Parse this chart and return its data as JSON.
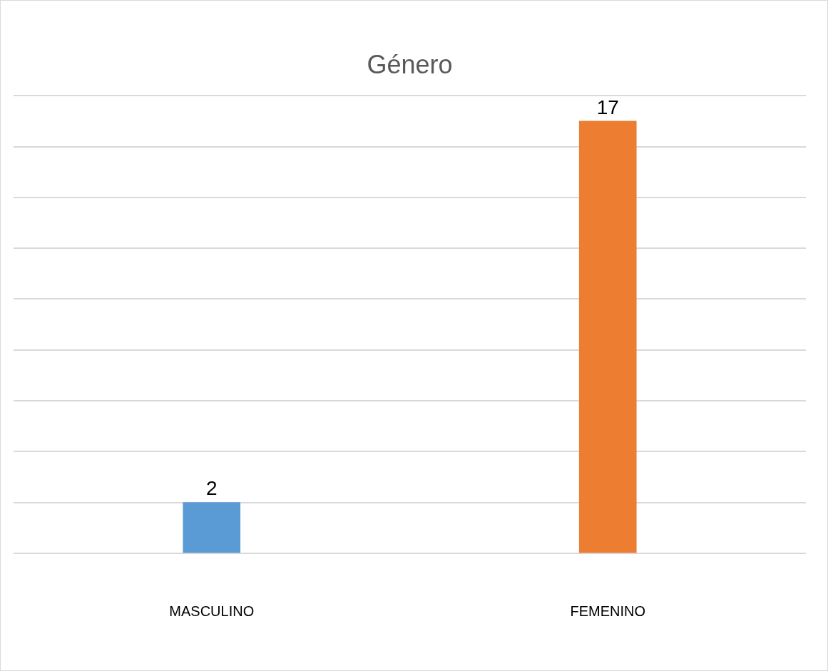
{
  "chart_data": {
    "type": "bar",
    "title": "Género",
    "categories": [
      "MASCULINO",
      "FEMENINO"
    ],
    "values": [
      2,
      17
    ],
    "colors": [
      "#5b9bd5",
      "#ed7d31"
    ],
    "tick_labels": "x",
    "grid": "y",
    "data_labels": true
  }
}
